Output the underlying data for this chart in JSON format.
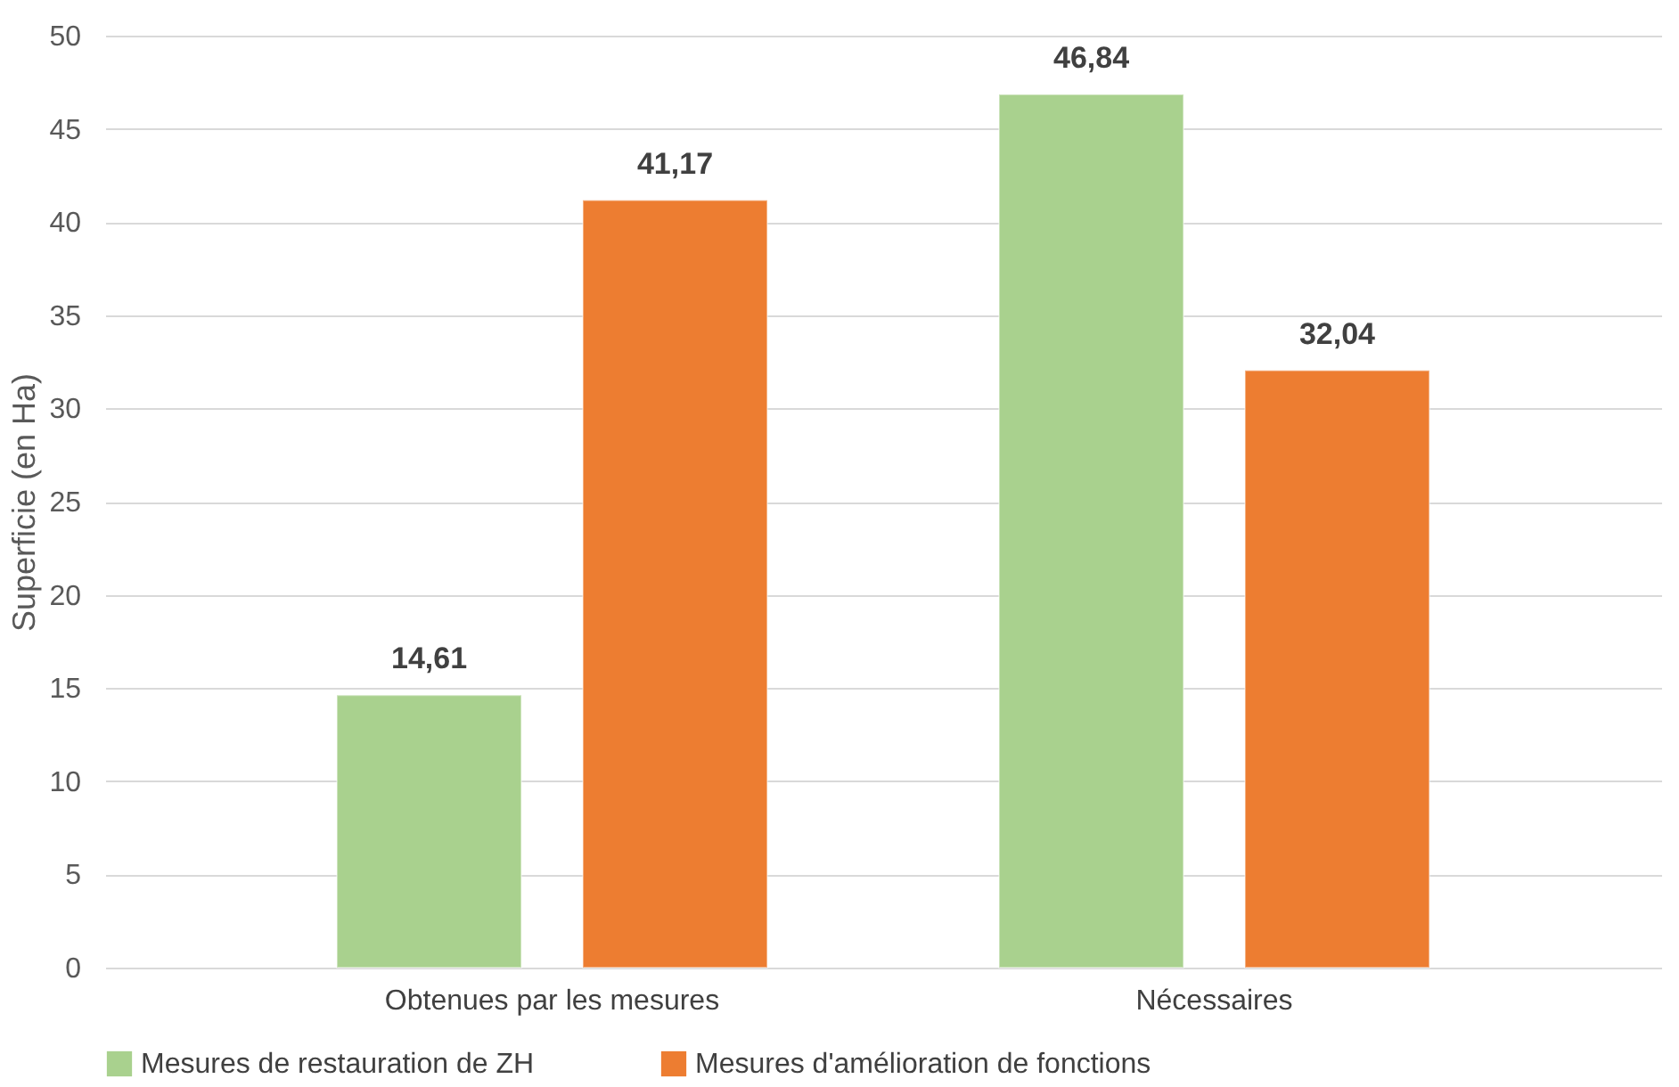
{
  "chart_data": {
    "type": "bar",
    "ylabel": "Superficie (en Ha)",
    "categories": [
      "Obtenues par les mesures",
      "Nécessaires"
    ],
    "series": [
      {
        "name": "Mesures de restauration de ZH",
        "color": "#a9d18e",
        "values": [
          14.61,
          46.84
        ],
        "value_labels": [
          "14,61",
          "46,84"
        ]
      },
      {
        "name": "Mesures d'amélioration de fonctions",
        "color": "#ed7d31",
        "values": [
          41.17,
          32.04
        ],
        "value_labels": [
          "41,17",
          "32,04"
        ]
      }
    ],
    "ylim": [
      0,
      50
    ],
    "yticks": [
      0,
      5,
      10,
      15,
      20,
      25,
      30,
      35,
      40,
      45,
      50
    ],
    "grid": "y",
    "legend": "bottom"
  }
}
